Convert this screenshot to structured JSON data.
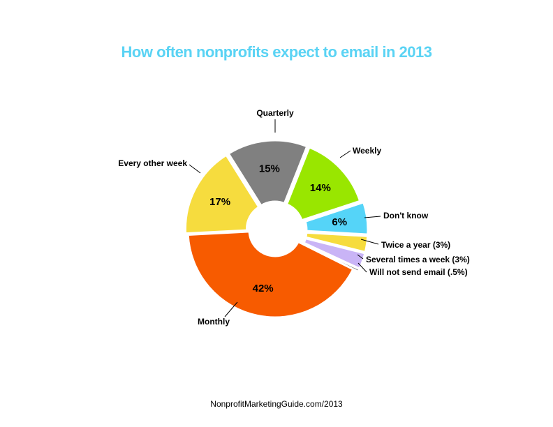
{
  "title": "How often nonprofits expect to email in 2013",
  "source": "NonprofitMarketingGuide.com/2013",
  "chart_data": {
    "type": "pie",
    "title": "How often nonprofits expect to email in 2013",
    "slices": [
      {
        "label": "Quarterly",
        "value": 15,
        "display": "15%",
        "color": "#808080"
      },
      {
        "label": "Weekly",
        "value": 14,
        "display": "14%",
        "color": "#99e600"
      },
      {
        "label": "Don't know",
        "value": 6,
        "display": "6%",
        "color": "#55d4f8"
      },
      {
        "label": "Twice a year (3%)",
        "value": 3,
        "display": "",
        "color": "#f6dc3e"
      },
      {
        "label": "Several times a week (3%)",
        "value": 3,
        "display": "",
        "color": "#c9b4f6"
      },
      {
        "label": "Will not send email (.5%)",
        "value": 0.5,
        "display": "",
        "color": "#6a6a6a"
      },
      {
        "label": "Monthly",
        "value": 42,
        "display": "42%",
        "color": "#f75b00"
      },
      {
        "label": "Every other week",
        "value": 17,
        "display": "17%",
        "color": "#f6dc3e"
      }
    ]
  }
}
